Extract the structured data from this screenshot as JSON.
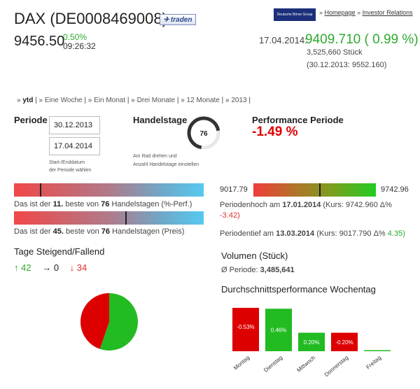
{
  "header": {
    "title": "DAX (DE0008469008)",
    "trade_label": "traden",
    "price": "9456.50",
    "change": "0.50%",
    "time": "09:26:32",
    "logo_text": "Deutsche Börse Group",
    "link_sep": "»",
    "links": [
      "Homepage",
      "Investor Relations"
    ]
  },
  "reference": {
    "date": "17.04.2014:",
    "value": "9409.710 ( 0.99 %)",
    "volume": "3,525,660 Stück",
    "prev": "(30.12.2013: 9552.160)"
  },
  "tabs": [
    "ytd",
    "Eine Woche",
    "Ein Monat",
    "Drei Monate",
    "12 Monate",
    "2013"
  ],
  "periode": {
    "label": "Periode",
    "start": "30.12.2013",
    "end": "17.04.2014",
    "hint_line1": "Start-/Enddatum",
    "hint_line2": "der Periode wählen"
  },
  "handel": {
    "label": "Handelstage",
    "days": "76",
    "days_fraction": 0.7,
    "hint_line1": "Am Rad drehen und",
    "hint_line2": "Anzahl Handelstage einstellen"
  },
  "performance": {
    "label": "Performance Periode",
    "value": "-1.49 %"
  },
  "rank_perf": {
    "prefix": "Das ist der",
    "rank": "11.",
    "mid": "beste von",
    "total": "76",
    "suffix": "Handelstagen (%-Perf.)",
    "fraction": 0.14
  },
  "rank_price": {
    "prefix": "Das ist der",
    "rank": "45.",
    "mid": "beste von",
    "total": "76",
    "suffix": "Handelstagen (Preis)",
    "fraction": 0.59
  },
  "range": {
    "min": "9017.79",
    "max": "9742.96",
    "fraction": 0.54,
    "hoch_prefix": "Periodenhoch am",
    "hoch_date": "17.01.2014",
    "hoch_kurs": "(Kurs: 9742.960 Δ%",
    "hoch_delta": "-3.42)",
    "tief_prefix": "Periodentief am",
    "tief_date": "13.03.2014",
    "tief_kurs": "(Kurs: 9017.790 Δ%",
    "tief_delta": "4.35)"
  },
  "steigend": {
    "title": "Tage Steigend/Fallend",
    "up": "↑ 42",
    "flat": "→ 0",
    "down": "↓ 34",
    "colors": {
      "up": "#22bb22",
      "down": "#dd0000"
    }
  },
  "volumen": {
    "title": "Volumen (Stück)",
    "prefix": "Ø Periode:",
    "value": "3,485,641"
  },
  "chart_data": {
    "type": "bar",
    "title": "Durchschnittsperformance Wochentag",
    "categories": [
      "Montag",
      "Dienstag",
      "Mittwoch",
      "Donnerstag",
      "Freitag"
    ],
    "values": [
      -0.53,
      0.46,
      0.2,
      -0.2,
      0.0
    ],
    "labels": [
      "-0.53%",
      "0.46%",
      "0.20%",
      "-0.20%",
      ""
    ],
    "colors": {
      "positive": "#22bb22",
      "negative": "#dd0000"
    }
  }
}
